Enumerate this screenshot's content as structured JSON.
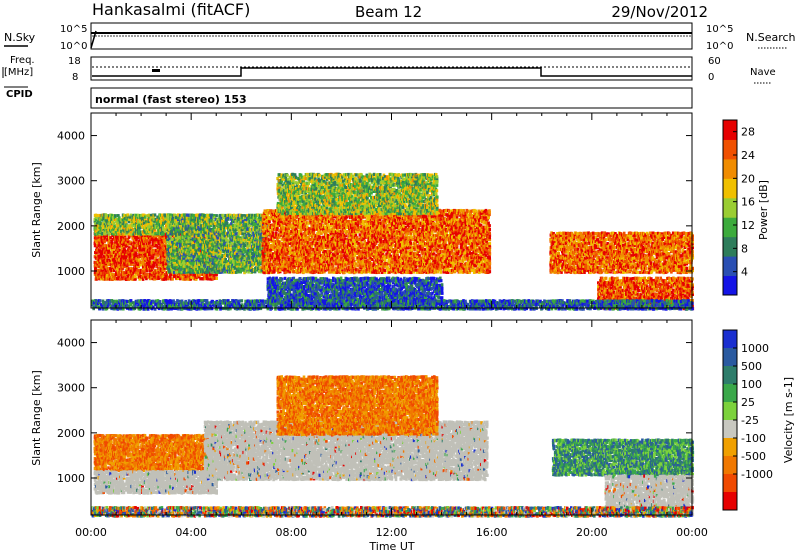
{
  "header": {
    "station": "Hankasalmi (fitACF)",
    "beam": "Beam 12",
    "date": "29/Nov/2012"
  },
  "small_panels": {
    "nsky_label": "N.Sky",
    "nsearch_label": "N.Search",
    "freq_label_1": "Freq.",
    "freq_label_2": "[MHz]",
    "cpid_label": "CPID",
    "nave_label": "Nave",
    "noise_ticks": [
      "10^5",
      "10^0"
    ],
    "freq_ticks": [
      "18",
      "8"
    ],
    "nave_ticks": [
      "60",
      "0"
    ],
    "cpid_text": "normal (fast stereo) 153"
  },
  "colors": {
    "power_scale": [
      "#1414e6",
      "#2a4fb3",
      "#2e7d5b",
      "#3cab3c",
      "#9acd32",
      "#f0c000",
      "#f08c00",
      "#f05000",
      "#e60000"
    ],
    "velocity_scale": [
      "#1a2fd0",
      "#2a5aa0",
      "#2e7d6b",
      "#3aa84a",
      "#7cd23c",
      "#c8c8c0",
      "#f0a000",
      "#f07800",
      "#f04a00",
      "#e60000"
    ],
    "ground_scatter": "#c0c0b8"
  },
  "chart_data": [
    {
      "type": "heatmap",
      "name_id": "power",
      "xlabel": "",
      "ylabel": "Slant Range [km]",
      "xlim": [
        "00:00",
        "24:00"
      ],
      "ylim": [
        180,
        4500
      ],
      "x_ticks": [
        "00:00",
        "04:00",
        "08:00",
        "12:00",
        "16:00",
        "20:00",
        "00:00"
      ],
      "y_ticks": [
        1000,
        2000,
        3000,
        4000
      ],
      "colorbar": {
        "label": "Power [dB]",
        "ticks": [
          4,
          8,
          12,
          16,
          20,
          24,
          28
        ],
        "range": [
          0,
          30
        ]
      },
      "regions": [
        {
          "t": [
            0.1,
            5.0
          ],
          "r": [
            850,
            1900
          ],
          "level": 26
        },
        {
          "t": [
            0.1,
            4.6
          ],
          "r": [
            1850,
            2300
          ],
          "level": 14
        },
        {
          "t": [
            3.0,
            7.0
          ],
          "r": [
            1000,
            2300
          ],
          "level": 12
        },
        {
          "t": [
            6.8,
            15.9
          ],
          "r": [
            1000,
            2400
          ],
          "level": 24
        },
        {
          "t": [
            7.4,
            13.8
          ],
          "r": [
            2300,
            3200
          ],
          "level": 14
        },
        {
          "t": [
            7.0,
            14.0
          ],
          "r": [
            300,
            900
          ],
          "level": 5
        },
        {
          "t": [
            18.3,
            24.0
          ],
          "r": [
            1000,
            1900
          ],
          "level": 24
        },
        {
          "t": [
            20.2,
            24.0
          ],
          "r": [
            200,
            900
          ],
          "level": 25
        },
        {
          "t": [
            0.0,
            24.0
          ],
          "r": [
            190,
            400
          ],
          "level": 6
        }
      ]
    },
    {
      "type": "heatmap",
      "name_id": "velocity",
      "xlabel": "Time UT",
      "ylabel": "Slant Range [km]",
      "xlim": [
        "00:00",
        "24:00"
      ],
      "ylim": [
        180,
        4500
      ],
      "x_ticks": [
        "00:00",
        "04:00",
        "08:00",
        "12:00",
        "16:00",
        "20:00",
        "00:00"
      ],
      "y_ticks": [
        1000,
        2000,
        3000,
        4000
      ],
      "colorbar": {
        "label": "Velocity [m s-1]",
        "ticks": [
          1000,
          500,
          100,
          25,
          -25,
          -100,
          -500,
          -1000
        ]
      },
      "regions": [
        {
          "t": [
            0.1,
            4.8
          ],
          "r": [
            1200,
            2000
          ],
          "kind": "away"
        },
        {
          "t": [
            0.1,
            5.0
          ],
          "r": [
            700,
            1200
          ],
          "kind": "ground"
        },
        {
          "t": [
            4.5,
            15.8
          ],
          "r": [
            1000,
            2300
          ],
          "kind": "ground"
        },
        {
          "t": [
            7.4,
            13.8
          ],
          "r": [
            2000,
            3300
          ],
          "kind": "away"
        },
        {
          "t": [
            18.4,
            24.0
          ],
          "r": [
            1100,
            1900
          ],
          "kind": "toward"
        },
        {
          "t": [
            20.5,
            24.0
          ],
          "r": [
            200,
            1100
          ],
          "kind": "ground"
        },
        {
          "t": [
            0.0,
            24.0
          ],
          "r": [
            190,
            400
          ],
          "kind": "mixed"
        }
      ]
    }
  ]
}
